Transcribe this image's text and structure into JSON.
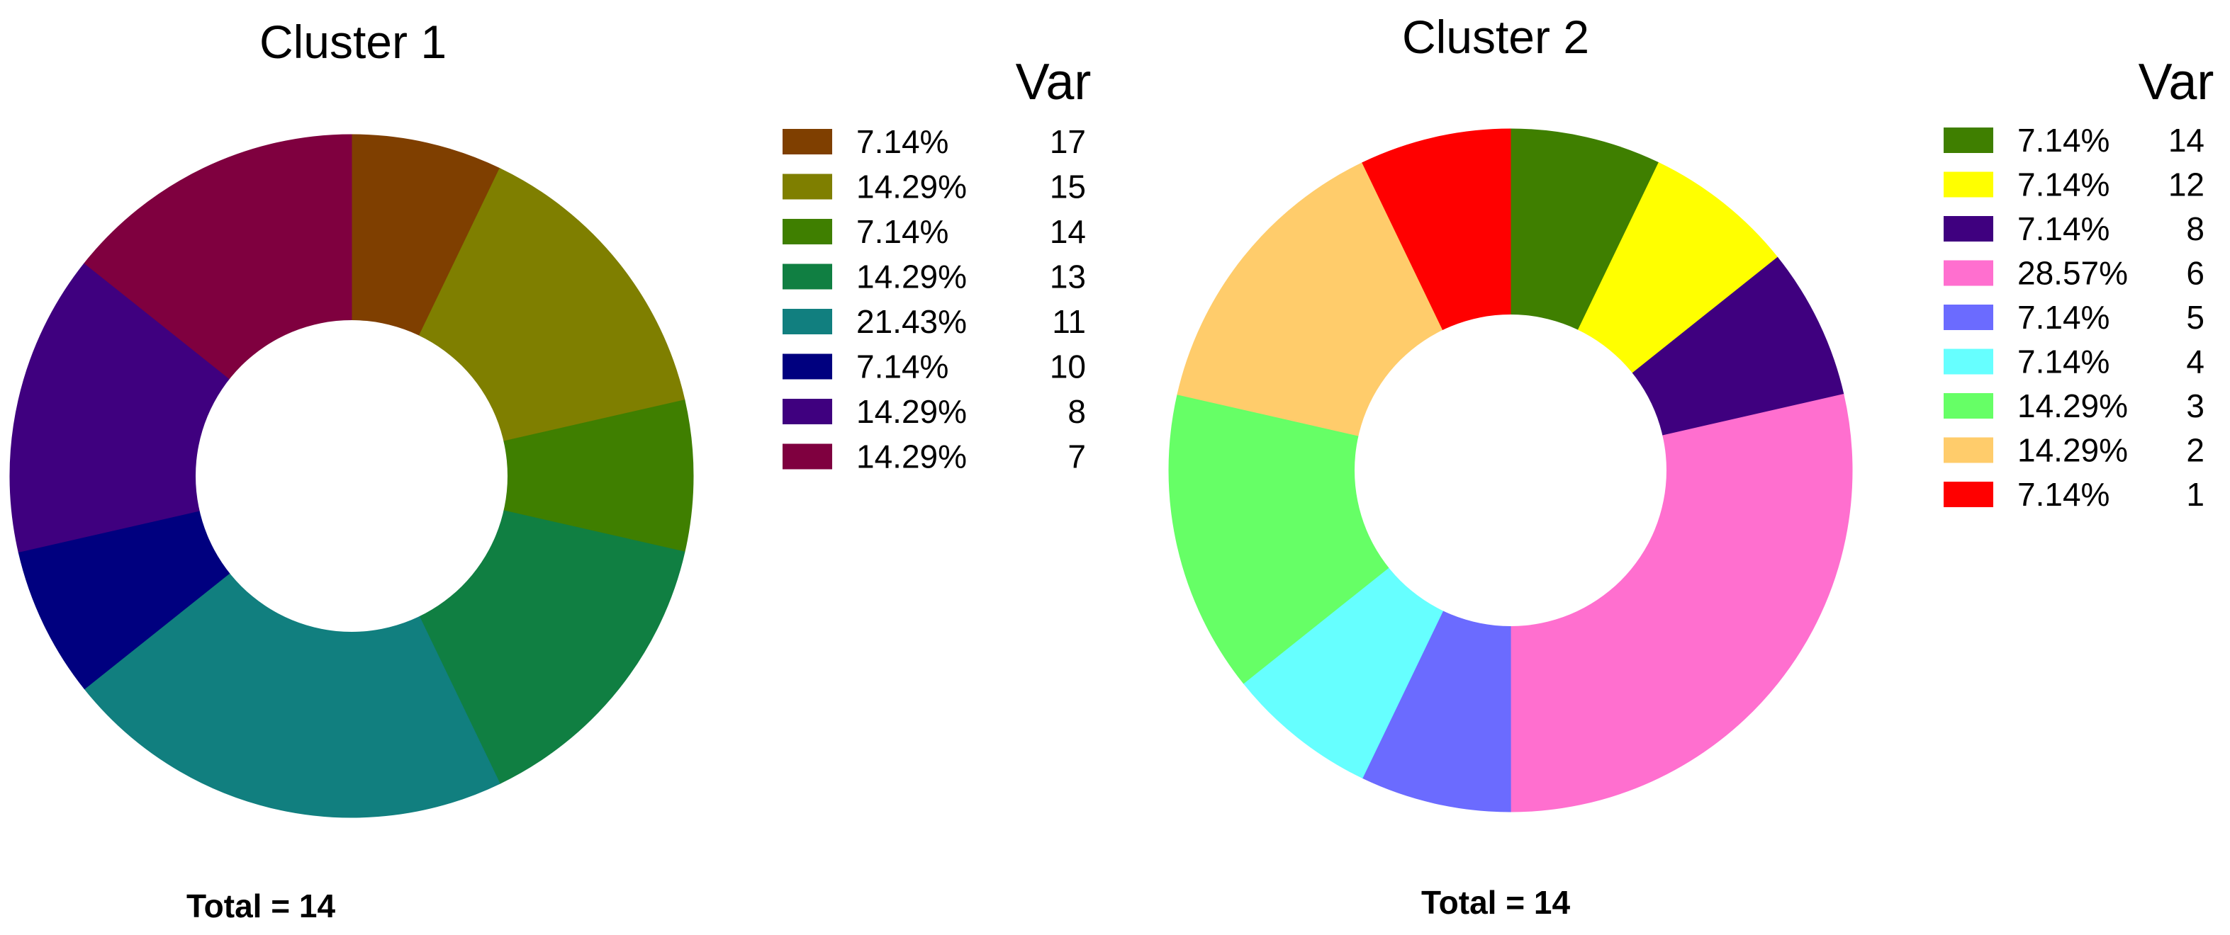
{
  "chart_data": [
    {
      "type": "pie",
      "donut": true,
      "title": "Cluster 1",
      "legend_title": "Var",
      "legend_placement": "right",
      "total_label": "Total = 14",
      "slices": [
        {
          "var": "17",
          "value": 7.14,
          "label": "7.14%",
          "color": "#7F3F00"
        },
        {
          "var": "15",
          "value": 14.29,
          "label": "14.29%",
          "color": "#7F7F00"
        },
        {
          "var": "14",
          "value": 7.14,
          "label": "7.14%",
          "color": "#3F7F00"
        },
        {
          "var": "13",
          "value": 14.29,
          "label": "14.29%",
          "color": "#107F42"
        },
        {
          "var": "11",
          "value": 21.43,
          "label": "21.43%",
          "color": "#117F7F"
        },
        {
          "var": "10",
          "value": 7.14,
          "label": "7.14%",
          "color": "#00007F"
        },
        {
          "var": "8",
          "value": 14.29,
          "label": "14.29%",
          "color": "#3F007F"
        },
        {
          "var": "7",
          "value": 14.29,
          "label": "14.29%",
          "color": "#7F003F"
        }
      ]
    },
    {
      "type": "pie",
      "donut": true,
      "title": "Cluster 2",
      "legend_title": "Var",
      "legend_placement": "right",
      "total_label": "Total = 14",
      "slices": [
        {
          "var": "14",
          "value": 7.14,
          "label": "7.14%",
          "color": "#3F7F00"
        },
        {
          "var": "12",
          "value": 7.14,
          "label": "7.14%",
          "color": "#FFFF00"
        },
        {
          "var": "8",
          "value": 7.14,
          "label": "7.14%",
          "color": "#3F007F"
        },
        {
          "var": "6",
          "value": 28.57,
          "label": "28.57%",
          "color": "#FF6FCF"
        },
        {
          "var": "5",
          "value": 7.14,
          "label": "7.14%",
          "color": "#6B6BFF"
        },
        {
          "var": "4",
          "value": 7.14,
          "label": "7.14%",
          "color": "#66FFFF"
        },
        {
          "var": "3",
          "value": 14.29,
          "label": "14.29%",
          "color": "#66FF66"
        },
        {
          "var": "2",
          "value": 14.29,
          "label": "14.29%",
          "color": "#FFCC6B"
        },
        {
          "var": "1",
          "value": 7.14,
          "label": "7.14%",
          "color": "#FF0000"
        }
      ]
    }
  ]
}
